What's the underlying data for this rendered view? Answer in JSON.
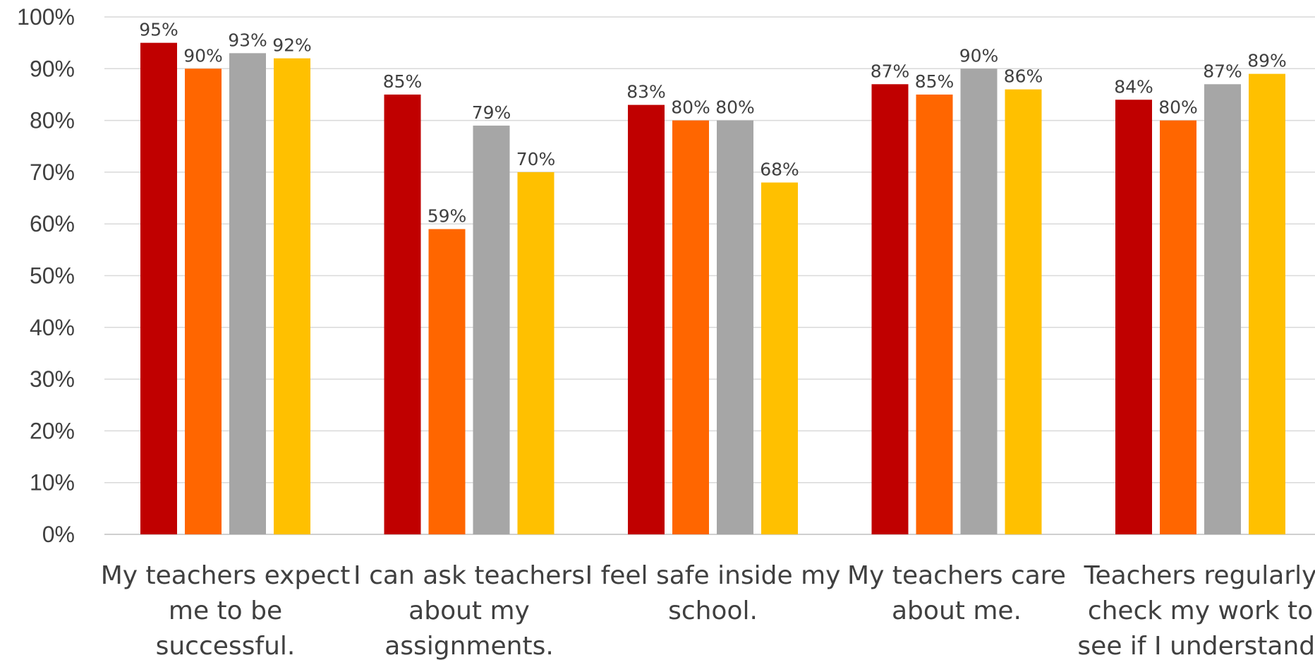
{
  "chart_data": {
    "type": "bar",
    "categories": [
      [
        "My teachers expect",
        "me to be",
        "successful."
      ],
      [
        "I can ask teachers",
        "about my",
        "assignments."
      ],
      [
        "I feel safe inside my",
        "school."
      ],
      [
        "My teachers care",
        "about me."
      ],
      [
        "Teachers regularly",
        "check my work to",
        "see if I understand."
      ]
    ],
    "series": [
      {
        "color": "#C00000",
        "values": [
          95,
          85,
          83,
          87,
          84
        ]
      },
      {
        "color": "#FF6600",
        "values": [
          90,
          59,
          80,
          85,
          80
        ]
      },
      {
        "color": "#A6A6A6",
        "values": [
          93,
          79,
          80,
          90,
          87
        ]
      },
      {
        "color": "#FFC000",
        "values": [
          92,
          70,
          68,
          86,
          89
        ]
      }
    ],
    "y_ticks": [
      "0%",
      "10%",
      "20%",
      "30%",
      "40%",
      "50%",
      "60%",
      "70%",
      "80%",
      "90%",
      "100%"
    ],
    "ylim": [
      0,
      100
    ],
    "value_suffix": "%",
    "grid": true,
    "legend": "none",
    "title": "",
    "xlabel": "",
    "ylabel": ""
  }
}
